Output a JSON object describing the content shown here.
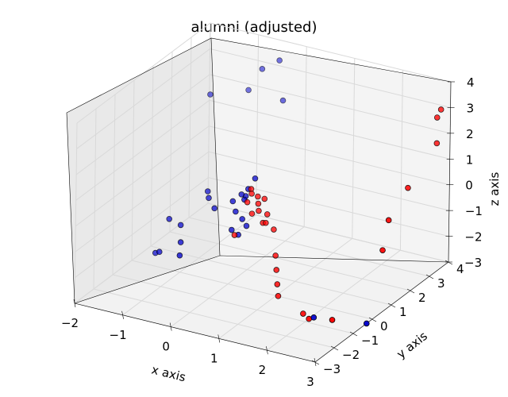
{
  "chart_data": {
    "type": "scatter",
    "title": "alumni (adjusted)",
    "xlabel": "x axis",
    "ylabel": "y axis",
    "zlabel": "z axis",
    "xlim": [
      -2,
      3
    ],
    "ylim": [
      -3,
      4
    ],
    "zlim": [
      -3,
      4
    ],
    "x_ticks": [
      "−2",
      "−1",
      "0",
      "1",
      "2",
      "3"
    ],
    "y_ticks": [
      "−3",
      "−2",
      "−1",
      "0",
      "1",
      "2",
      "3",
      "4"
    ],
    "z_ticks": [
      "−3",
      "−2",
      "−1",
      "0",
      "1",
      "2",
      "3",
      "4"
    ],
    "grid": true,
    "colors": {
      "red": "#ff0000",
      "blue": "#0000cc",
      "pane": "#f2f2f2",
      "grid": "#d9d9d9"
    },
    "series": [
      {
        "color": "red",
        "points": [
          [
            0.3,
            0.4,
            0.6
          ],
          [
            0.4,
            0.5,
            0.3
          ],
          [
            0.35,
            0.3,
            0.5
          ],
          [
            0.5,
            0.6,
            0.2
          ],
          [
            0.45,
            0.4,
            0.1
          ],
          [
            0.3,
            0.2,
            0.2
          ],
          [
            0.5,
            0.3,
            -0.1
          ],
          [
            0.6,
            0.5,
            -0.3
          ],
          [
            0.55,
            0.4,
            -0.6
          ],
          [
            0.4,
            0.2,
            -0.2
          ],
          [
            0.7,
            0.6,
            -0.9
          ],
          [
            0.65,
            0.3,
            -0.5
          ],
          [
            0.2,
            -0.2,
            -0.9
          ],
          [
            0.9,
            0.2,
            -1.6
          ],
          [
            1.0,
            0.0,
            -2.0
          ],
          [
            1.1,
            -0.2,
            -2.4
          ],
          [
            1.2,
            -0.4,
            -2.7
          ],
          [
            1.8,
            -0.6,
            -3.0
          ],
          [
            2.0,
            -0.8,
            -3.0
          ],
          [
            2.6,
            -1.1,
            -2.6
          ],
          [
            3.0,
            3.5,
            3.2
          ],
          [
            3.0,
            3.3,
            3.0
          ],
          [
            3.0,
            3.3,
            2.0
          ],
          [
            3.0,
            1.8,
            1.1
          ],
          [
            3.0,
            0.8,
            0.4
          ],
          [
            3.0,
            0.5,
            -0.6
          ]
        ]
      },
      {
        "color": "blue",
        "points": [
          [
            -0.6,
            3.2,
            3.3
          ],
          [
            -0.4,
            3.6,
            3.5
          ],
          [
            -0.8,
            3.0,
            2.5
          ],
          [
            -0.2,
            3.3,
            2.2
          ],
          [
            -1.2,
            2.0,
            2.7
          ],
          [
            0.3,
            0.6,
            0.9
          ],
          [
            0.2,
            0.5,
            0.5
          ],
          [
            0.1,
            0.4,
            0.3
          ],
          [
            0.2,
            0.3,
            0.2
          ],
          [
            0.15,
            0.5,
            0.2
          ],
          [
            0.0,
            0.2,
            0.1
          ],
          [
            -0.5,
            0.2,
            0.0
          ],
          [
            -0.6,
            0.4,
            0.1
          ],
          [
            -0.3,
            0.0,
            -0.2
          ],
          [
            0.1,
            0.1,
            -0.2
          ],
          [
            0.2,
            0.2,
            -0.5
          ],
          [
            0.25,
            0.3,
            -0.8
          ],
          [
            0.1,
            -0.1,
            -0.8
          ],
          [
            0.2,
            0.0,
            -1.0
          ],
          [
            -0.8,
            -0.5,
            -0.8
          ],
          [
            -1.0,
            -0.6,
            -0.6
          ],
          [
            -0.6,
            -1.0,
            -1.1
          ],
          [
            -0.5,
            -1.3,
            -1.4
          ],
          [
            -1.0,
            -1.1,
            -1.6
          ],
          [
            -1.2,
            -0.8,
            -1.9
          ],
          [
            2.1,
            -0.8,
            -2.9
          ],
          [
            3.0,
            -0.3,
            -3.0
          ]
        ]
      }
    ]
  }
}
